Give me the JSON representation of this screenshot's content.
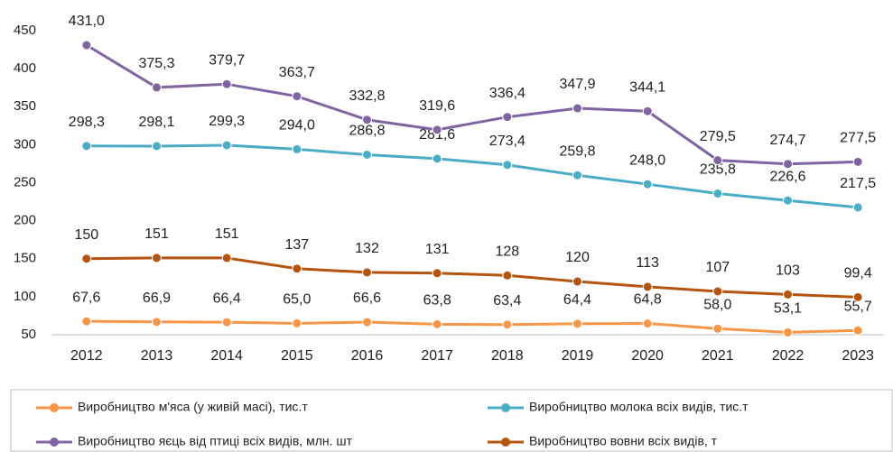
{
  "chart_data": {
    "type": "line",
    "categories": [
      "2012",
      "2013",
      "2014",
      "2015",
      "2016",
      "2017",
      "2018",
      "2019",
      "2020",
      "2021",
      "2022",
      "2023"
    ],
    "ylim": [
      50,
      450
    ],
    "yticks": [
      50,
      100,
      150,
      200,
      250,
      300,
      350,
      400,
      450
    ],
    "grid": false,
    "legend": "bottom",
    "series": [
      {
        "name": "Виробництво м'яса (у живій масі), тис.т",
        "color": "#f79646",
        "values": [
          67.6,
          66.9,
          66.4,
          65.0,
          66.6,
          63.8,
          63.4,
          64.4,
          64.8,
          58.0,
          53.1,
          55.7
        ],
        "value_labels": [
          "67,6",
          "66,9",
          "66,4",
          "65,0",
          "66,6",
          "63,8",
          "63,4",
          "64,4",
          "64,8",
          "58,0",
          "53,1",
          "55,7"
        ]
      },
      {
        "name": "Виробництво молока всіх видів, тис.т",
        "color": "#4bacc6",
        "values": [
          298.3,
          298.1,
          299.3,
          294.0,
          286.8,
          281.6,
          273.4,
          259.8,
          248.0,
          235.8,
          226.6,
          217.5
        ],
        "value_labels": [
          "298,3",
          "298,1",
          "299,3",
          "294,0",
          "286,8",
          "281,6",
          "273,4",
          "259,8",
          "248,0",
          "235,8",
          "226,6",
          "217,5"
        ]
      },
      {
        "name": "Виробництво яєць від птиці всіх видів, млн. шт",
        "color": "#8064a2",
        "values": [
          431.0,
          375.3,
          379.7,
          363.7,
          332.8,
          319.6,
          336.4,
          347.9,
          344.1,
          279.5,
          274.7,
          277.5
        ],
        "value_labels": [
          "431,0",
          "375,3",
          "379,7",
          "363,7",
          "332,8",
          "319,6",
          "336,4",
          "347,9",
          "344,1",
          "279,5",
          "274,7",
          "277,5"
        ]
      },
      {
        "name": "Виробництво вовни всіх видів, т",
        "color": "#b5540f",
        "values": [
          150,
          151,
          151,
          137,
          132,
          131,
          128,
          120,
          113,
          107,
          103,
          99.4
        ],
        "value_labels": [
          "150",
          "151",
          "151",
          "137",
          "132",
          "131",
          "128",
          "120",
          "113",
          "107",
          "103",
          "99,4"
        ]
      }
    ]
  }
}
